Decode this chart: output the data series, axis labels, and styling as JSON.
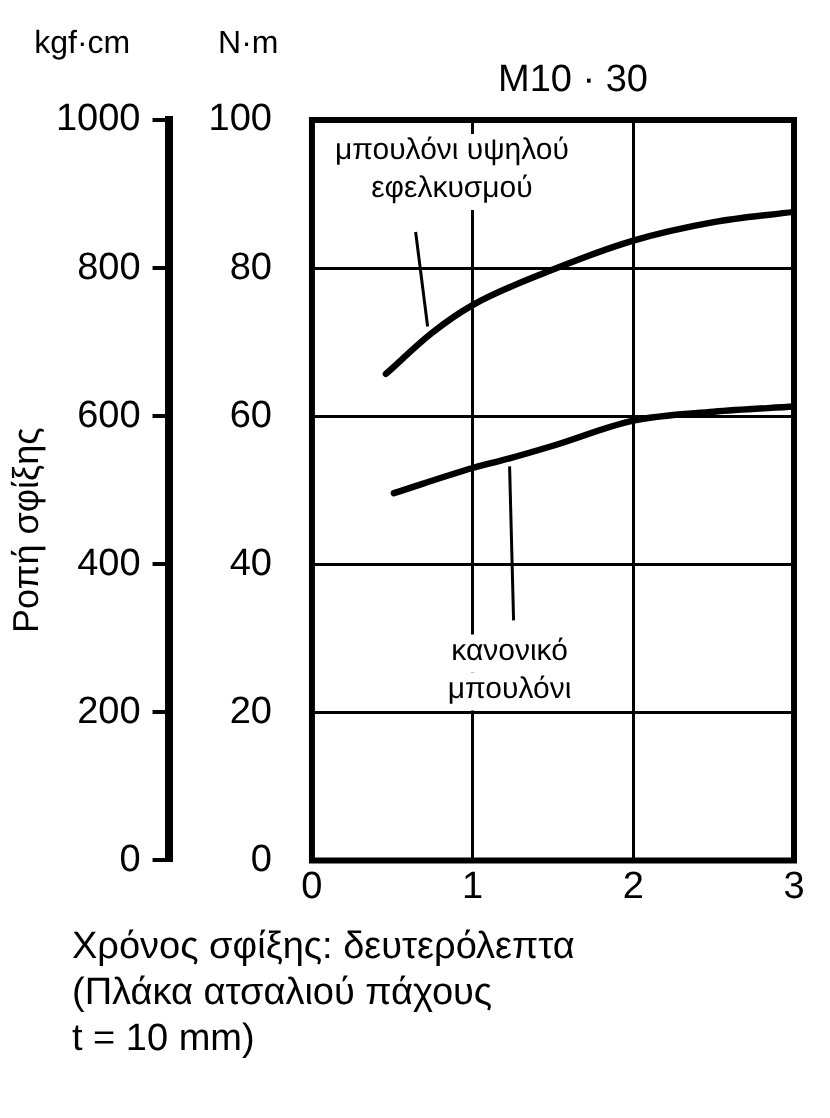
{
  "chart_data": {
    "type": "line",
    "title": "M10 · 30",
    "y2label": "Ροπή σφίξης",
    "xlabel": "Χρόνος σφίξης: δευτερόλεπτα\n(Πλάκα ατσαλιού πάχους\nt = 10 mm)",
    "x": [
      0.46,
      0.75,
      1,
      1.5,
      2,
      2.5,
      3
    ],
    "series": [
      {
        "color": "#000000",
        "values": [
          65.7,
          71.3,
          75,
          79.8,
          83.7,
          86.2,
          87.6
        ]
      },
      {
        "color": "#000000",
        "x": [
          0.51,
          1,
          1.23,
          1.5,
          2,
          2.5,
          3
        ],
        "values": [
          49.6,
          53,
          54.3,
          56,
          59.4,
          60.6,
          61.3
        ]
      }
    ],
    "xlim": [
      0,
      3
    ],
    "xticks": [
      0,
      1,
      2,
      3
    ],
    "ylim": [
      0,
      100
    ],
    "yticks": [
      0,
      20,
      40,
      60,
      80,
      100
    ],
    "y2lim": [
      0,
      1000
    ],
    "y2ticks": [
      0,
      200,
      400,
      600,
      800,
      1000
    ],
    "annotations": [
      "kgf·cm",
      "N·m",
      {
        "text": "μπουλόνι υψηλού εφελκυσμού",
        "x": 0.72,
        "y": 71.3
      },
      {
        "text": "κανονικό μπουλόνι",
        "x": 1.23,
        "y": 54.3
      }
    ],
    "grid": true,
    "legend": false,
    "marker": "none",
    "line_style": "solid"
  }
}
